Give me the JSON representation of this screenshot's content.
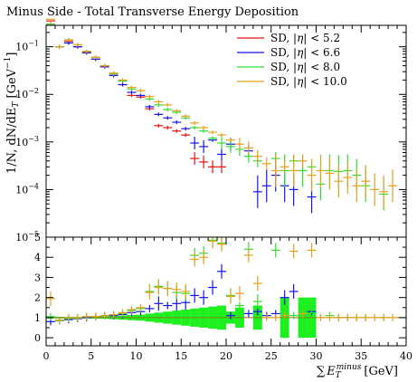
{
  "chart_data": {
    "type": "scatter",
    "title": "Minus Side - Total Transverse Energy Deposition",
    "ylabel": "1/N, dN/dE_T [GeV^-1]",
    "xlabel_sum": "∑",
    "xlabel_E": "E",
    "xlabel_sub": "T",
    "xlabel_sup": "minus",
    "xlabel_unit": "[GeV]",
    "ylabel_main": "1/N, dN/dE",
    "ylabel_sub": "T",
    "ylabel_unit_open": " [GeV",
    "ylabel_unit_sup": "−1",
    "ylabel_unit_close": "]",
    "x_ticks": [
      "0",
      "5",
      "10",
      "15",
      "20",
      "25",
      "30",
      "35",
      "40"
    ],
    "x_tick_values": [
      0,
      5,
      10,
      15,
      20,
      25,
      30,
      35,
      40
    ],
    "xlim": [
      0,
      40
    ],
    "top_ylim_log10": [
      -5,
      -0.55
    ],
    "top_y_ticks": [
      {
        "base": "10",
        "exp": "−1",
        "value": 0.1
      },
      {
        "base": "10",
        "exp": "−2",
        "value": 0.01
      },
      {
        "base": "10",
        "exp": "−3",
        "value": 0.001
      },
      {
        "base": "10",
        "exp": "−4",
        "value": 0.0001
      },
      {
        "base": "10",
        "exp": "−5",
        "value": 1e-05
      }
    ],
    "ratio_ylim": [
      -0.4,
      5
    ],
    "ratio_y_ticks": [
      "0",
      "1",
      "2",
      "3",
      "4",
      "5"
    ],
    "ratio_y_values": [
      0,
      1,
      2,
      3,
      4,
      5
    ],
    "legend_position": "top-right",
    "legend_prefix": "SD, |",
    "legend_eta": "η",
    "legend_suffixes": [
      "| < 5.2",
      "| < 6.6",
      "| < 8.0",
      "| < 10.0"
    ],
    "series": [
      {
        "name": "SD, |η| < 5.2",
        "color": "#e81313",
        "x": [
          0.5,
          1.5,
          2.5,
          3.5,
          4.5,
          5.5,
          6.5,
          7.5,
          8.5,
          9.5,
          10.5,
          11.5,
          12.5,
          13.5,
          14.5,
          15.5,
          16.5,
          17.5,
          18.5,
          19.5
        ],
        "y": [
          0.35,
          0.1,
          0.13,
          0.1,
          0.075,
          0.055,
          0.038,
          0.025,
          0.016,
          0.0095,
          0.0088,
          0.005,
          0.0022,
          0.002,
          0.0017,
          0.0014,
          0.00045,
          0.00038,
          0.0003,
          0.0003
        ],
        "ratio": [
          1.0,
          0.95,
          0.98,
          1.0,
          1.0,
          1.0,
          1.0,
          1.0,
          1.0,
          1.0,
          1.0,
          1.0,
          1.0,
          1.0,
          1.0,
          1.0,
          1.0,
          1.0,
          1.0,
          1.0
        ]
      },
      {
        "name": "SD, |η| < 6.6",
        "color": "#1515ee",
        "x": [
          0.5,
          1.5,
          2.5,
          3.5,
          4.5,
          5.5,
          6.5,
          7.5,
          8.5,
          9.5,
          10.5,
          11.5,
          12.5,
          13.5,
          14.5,
          15.5,
          16.5,
          17.5,
          18.5,
          19.5,
          20.5,
          22.5,
          23.5,
          24.5,
          25.5,
          26.5,
          27.5,
          29.5
        ],
        "y": [
          0.3,
          0.1,
          0.12,
          0.1,
          0.075,
          0.055,
          0.038,
          0.025,
          0.016,
          0.011,
          0.0095,
          0.0055,
          0.0038,
          0.0032,
          0.0026,
          0.0019,
          0.00095,
          0.0008,
          0.0011,
          0.00055,
          0.0009,
          0.00065,
          9e-05,
          0.00012,
          0.0002,
          0.00012,
          0.0001,
          7e-05
        ],
        "ratio": [
          0.8,
          0.85,
          0.9,
          0.95,
          1.0,
          1.05,
          1.1,
          1.1,
          1.15,
          1.25,
          1.3,
          1.45,
          1.7,
          1.6,
          1.7,
          1.75,
          2.1,
          2.0,
          2.5,
          3.3,
          1.1,
          1.2,
          1.3,
          1.1,
          1.2,
          2.0,
          2.3,
          1.3
        ]
      },
      {
        "name": "SD, |η| < 8.0",
        "color": "#30e030",
        "x": [
          0.5,
          1.5,
          2.5,
          3.5,
          4.5,
          5.5,
          6.5,
          7.5,
          8.5,
          9.5,
          10.5,
          11.5,
          12.5,
          13.5,
          14.5,
          15.5,
          16.5,
          17.5,
          18.5,
          19.5,
          20.5,
          21.5,
          22.5,
          23.5,
          25.5,
          26.5,
          27.5,
          28.5,
          29.5,
          30.5,
          31.5,
          32.5,
          33.5,
          34.5,
          35.5,
          37.5
        ],
        "y": [
          0.3,
          0.1,
          0.14,
          0.11,
          0.08,
          0.06,
          0.04,
          0.027,
          0.019,
          0.013,
          0.012,
          0.008,
          0.006,
          0.0048,
          0.0042,
          0.0032,
          0.002,
          0.0017,
          0.0012,
          0.00095,
          0.0008,
          0.0007,
          0.0005,
          0.0004,
          0.00045,
          0.00025,
          0.0004,
          0.00025,
          0.0003,
          0.00013,
          0.00025,
          0.00024,
          0.00025,
          0.0002,
          0.00012,
          8e-05
        ],
        "ratio": [
          1.05,
          0.85,
          0.95,
          0.98,
          1.05,
          1.05,
          1.1,
          1.15,
          1.2,
          1.35,
          1.45,
          2.3,
          2.55,
          2.45,
          2.25,
          2.2,
          4.1,
          4.2,
          4.85,
          4.7,
          2.1,
          1.6,
          4.4,
          1.8,
          4.35,
          1.1,
          1.1,
          1.1,
          1.4,
          1.0,
          1.1,
          1.0,
          1.0,
          1.0,
          1.0,
          1.0
        ]
      },
      {
        "name": "SD, |η| < 10.0",
        "color": "#e8a020",
        "x": [
          0.5,
          1.5,
          2.5,
          3.5,
          4.5,
          5.5,
          6.5,
          7.5,
          8.5,
          9.5,
          10.5,
          11.5,
          12.5,
          13.5,
          14.5,
          15.5,
          16.5,
          17.5,
          18.5,
          19.5,
          20.5,
          21.5,
          22.5,
          23.5,
          24.5,
          25.5,
          26.5,
          27.5,
          28.5,
          29.5,
          30.5,
          31.5,
          32.5,
          33.5,
          34.5,
          35.5,
          36.5,
          37.5,
          38.5
        ],
        "y": [
          0.38,
          0.1,
          0.14,
          0.11,
          0.08,
          0.06,
          0.04,
          0.028,
          0.02,
          0.014,
          0.012,
          0.009,
          0.007,
          0.006,
          0.0045,
          0.0035,
          0.0025,
          0.002,
          0.0016,
          0.0014,
          0.0011,
          0.0009,
          0.00075,
          0.0005,
          0.00035,
          0.00025,
          0.0003,
          0.00025,
          0.0004,
          0.0002,
          0.00025,
          0.00022,
          0.00015,
          0.00018,
          0.00012,
          0.00015,
          0.0001,
          9e-05,
          0.00012
        ],
        "ratio": [
          1.95,
          0.88,
          1.0,
          1.0,
          1.05,
          1.05,
          1.1,
          1.15,
          1.25,
          1.4,
          1.5,
          2.25,
          2.5,
          2.45,
          2.4,
          2.3,
          3.9,
          4.0,
          4.8,
          4.65,
          2.05,
          2.2,
          4.1,
          2.7,
          1.0,
          1.0,
          1.1,
          4.3,
          1.2,
          4.35,
          1.0,
          1.0,
          1.0,
          1.0,
          1.0,
          1.0,
          1.0,
          1.0,
          1.0
        ]
      }
    ]
  }
}
